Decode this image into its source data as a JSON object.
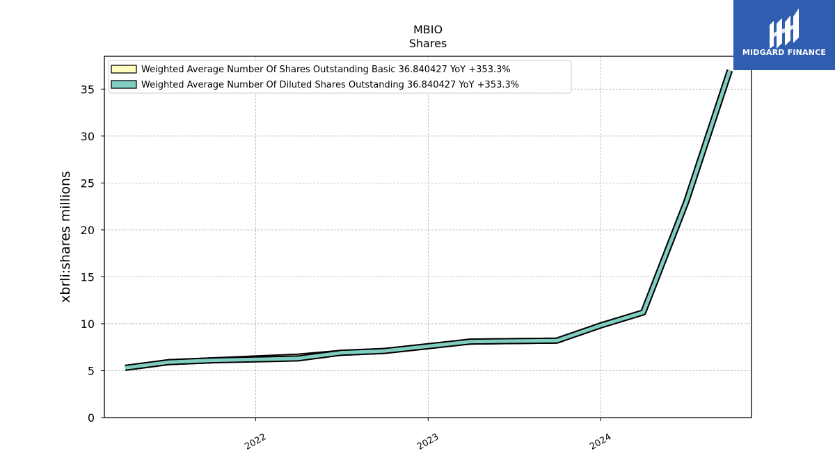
{
  "title": "MBIO",
  "subtitle": "Shares",
  "brand": {
    "name": "MIDGARD FINANCE",
    "color": "#2f5db0"
  },
  "chart_data": {
    "type": "line",
    "ylabel": "xbrli:shares millions",
    "xlabel": "",
    "ylim": [
      0,
      38.5
    ],
    "yticks": [
      0,
      5,
      10,
      15,
      20,
      25,
      30,
      35
    ],
    "xlim": [
      "2021-02-15",
      "2024-11-15"
    ],
    "xticks": [
      {
        "date": "2022-01-01",
        "label": "2022"
      },
      {
        "date": "2023-01-01",
        "label": "2023"
      },
      {
        "date": "2024-01-01",
        "label": "2024"
      }
    ],
    "grid": true,
    "legend_position": "top-left",
    "series": [
      {
        "name": "Weighted Average Number Of Shares Outstanding Basic  36.840427 YoY +353.3%",
        "color": "#ffffbf",
        "x": [
          "2021-03-31",
          "2021-06-30",
          "2021-09-30",
          "2021-12-31",
          "2022-03-31",
          "2022-06-30",
          "2022-09-30",
          "2022-12-31",
          "2023-03-31",
          "2023-06-30",
          "2023-09-30",
          "2023-12-31",
          "2024-03-31",
          "2024-06-30",
          "2024-09-30"
        ],
        "y": [
          5.3,
          5.9,
          6.1,
          6.3,
          6.5,
          6.9,
          7.1,
          7.6,
          8.1,
          8.15,
          8.2,
          9.8,
          11.2,
          23.0,
          37.0
        ]
      },
      {
        "name": "Weighted Average Number Of Diluted Shares Outstanding  36.840427 YoY +353.3%",
        "color": "#80cdc1",
        "x": [
          "2021-03-31",
          "2021-06-30",
          "2021-09-30",
          "2021-12-31",
          "2022-03-31",
          "2022-06-30",
          "2022-09-30",
          "2022-12-31",
          "2023-03-31",
          "2023-06-30",
          "2023-09-30",
          "2023-12-31",
          "2024-03-31",
          "2024-06-30",
          "2024-09-30"
        ],
        "y": [
          5.3,
          5.9,
          6.1,
          6.2,
          6.3,
          6.9,
          7.1,
          7.6,
          8.1,
          8.15,
          8.2,
          9.8,
          11.2,
          23.0,
          37.0
        ]
      }
    ]
  }
}
